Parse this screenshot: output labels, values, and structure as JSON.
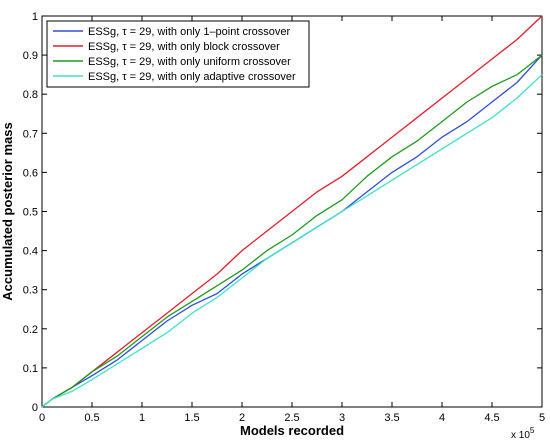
{
  "chart_data": {
    "type": "line",
    "xlabel": "Models recorded",
    "ylabel": "Accumulated posterior mass",
    "x_multiplier": "x 10",
    "x_multiplier_exp": "5",
    "xlim": [
      0,
      5
    ],
    "ylim": [
      0,
      1
    ],
    "x_ticks": [
      "0",
      "0.5",
      "1",
      "1.5",
      "2",
      "2.5",
      "3",
      "3.5",
      "4",
      "4.5",
      "5"
    ],
    "y_ticks": [
      "0",
      "0.1",
      "0.2",
      "0.3",
      "0.4",
      "0.5",
      "0.6",
      "0.7",
      "0.8",
      "0.9",
      "1"
    ],
    "grid": false,
    "legend_position": "top-left",
    "series": [
      {
        "name": "ESSg, τ = 29, with only 1–point crossover",
        "color": "#2f4fd8",
        "x": [
          0,
          0.1,
          0.3,
          0.5,
          0.75,
          1.0,
          1.25,
          1.5,
          1.75,
          2.0,
          2.25,
          2.5,
          2.75,
          3.0,
          3.25,
          3.5,
          3.75,
          4.0,
          4.25,
          4.5,
          4.75,
          5.0
        ],
        "y": [
          0,
          0.02,
          0.05,
          0.08,
          0.12,
          0.17,
          0.22,
          0.26,
          0.29,
          0.34,
          0.38,
          0.42,
          0.46,
          0.5,
          0.55,
          0.6,
          0.64,
          0.69,
          0.73,
          0.78,
          0.83,
          0.9
        ]
      },
      {
        "name": "ESSg, τ = 29, with only block crossover",
        "color": "#e0202a",
        "x": [
          0,
          0.1,
          0.3,
          0.5,
          0.75,
          1.0,
          1.25,
          1.5,
          1.75,
          2.0,
          2.25,
          2.5,
          2.75,
          3.0,
          3.25,
          3.5,
          3.75,
          4.0,
          4.25,
          4.5,
          4.75,
          5.0
        ],
        "y": [
          0,
          0.02,
          0.05,
          0.09,
          0.14,
          0.19,
          0.24,
          0.29,
          0.34,
          0.4,
          0.45,
          0.5,
          0.55,
          0.59,
          0.64,
          0.69,
          0.74,
          0.79,
          0.84,
          0.89,
          0.94,
          1.0
        ]
      },
      {
        "name": "ESSg, τ = 29, with only uniform crossover",
        "color": "#1f9a1f",
        "x": [
          0,
          0.1,
          0.3,
          0.5,
          0.75,
          1.0,
          1.25,
          1.5,
          1.75,
          2.0,
          2.25,
          2.5,
          2.75,
          3.0,
          3.25,
          3.5,
          3.75,
          4.0,
          4.25,
          4.5,
          4.75,
          5.0
        ],
        "y": [
          0,
          0.02,
          0.05,
          0.09,
          0.13,
          0.18,
          0.23,
          0.27,
          0.31,
          0.35,
          0.4,
          0.44,
          0.49,
          0.53,
          0.59,
          0.64,
          0.68,
          0.73,
          0.78,
          0.82,
          0.85,
          0.9
        ]
      },
      {
        "name": "ESSg, τ = 29, with only adaptive crossover",
        "color": "#40e0c8",
        "x": [
          0,
          0.1,
          0.3,
          0.5,
          0.75,
          1.0,
          1.25,
          1.5,
          1.75,
          2.0,
          2.25,
          2.5,
          2.75,
          3.0,
          3.25,
          3.5,
          3.75,
          4.0,
          4.25,
          4.5,
          4.75,
          5.0
        ],
        "y": [
          0,
          0.02,
          0.04,
          0.07,
          0.11,
          0.15,
          0.19,
          0.24,
          0.28,
          0.33,
          0.38,
          0.42,
          0.46,
          0.5,
          0.54,
          0.58,
          0.62,
          0.66,
          0.7,
          0.74,
          0.79,
          0.85
        ]
      }
    ]
  }
}
